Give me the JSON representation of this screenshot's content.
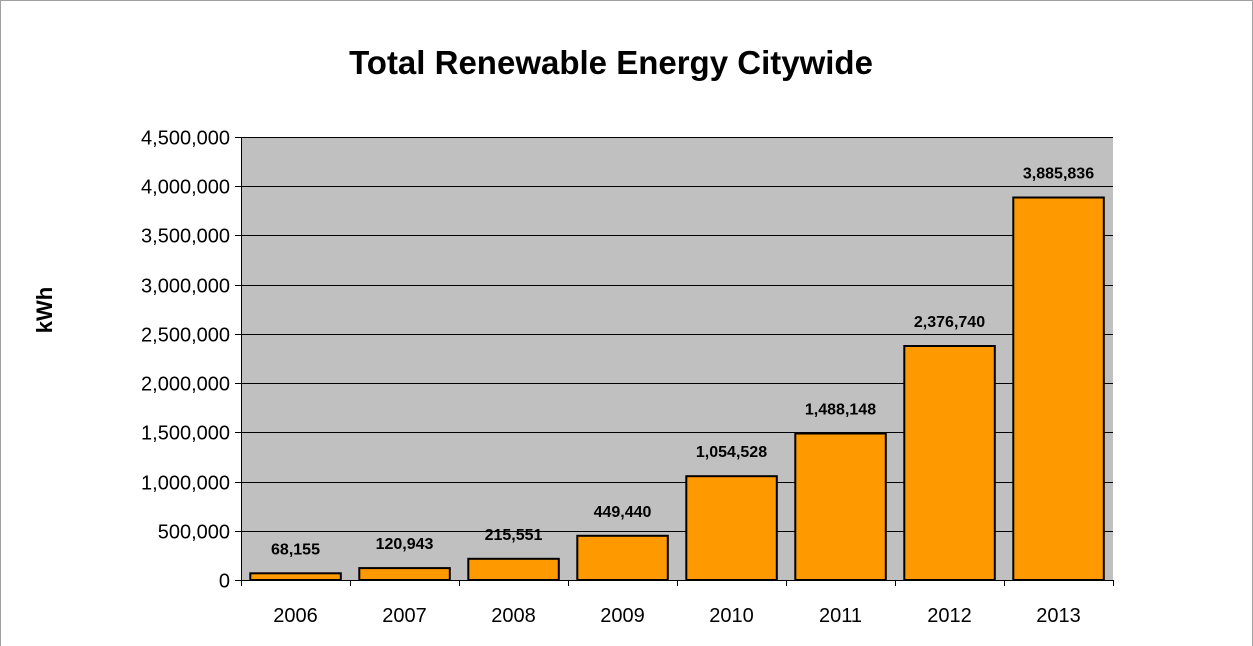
{
  "chart_data": {
    "type": "bar",
    "title": "Total Renewable Energy Citywide",
    "xlabel": "",
    "ylabel": "kWh",
    "categories": [
      "2006",
      "2007",
      "2008",
      "2009",
      "2010",
      "2011",
      "2012",
      "2013"
    ],
    "series": [
      {
        "values": [
          68155,
          120943,
          215551,
          449440,
          1054528,
          1488148,
          2376740,
          3885836
        ],
        "data_labels": [
          "68,155",
          "120,943",
          "215,551",
          "449,440",
          "1,054,528",
          "1,488,148",
          "2,376,740",
          "3,885,836"
        ],
        "color": "#FF9900"
      }
    ],
    "ylim": [
      0,
      4500000
    ],
    "yticks": [
      0,
      500000,
      1000000,
      1500000,
      2000000,
      2500000,
      3000000,
      3500000,
      4000000,
      4500000
    ],
    "ytick_labels": [
      "0",
      "500,000",
      "1,000,000",
      "1,500,000",
      "2,000,000",
      "2,500,000",
      "3,000,000",
      "3,500,000",
      "4,000,000",
      "4,500,000"
    ],
    "grid": true,
    "legend": "none",
    "plot_background": "#C0C0C0"
  }
}
